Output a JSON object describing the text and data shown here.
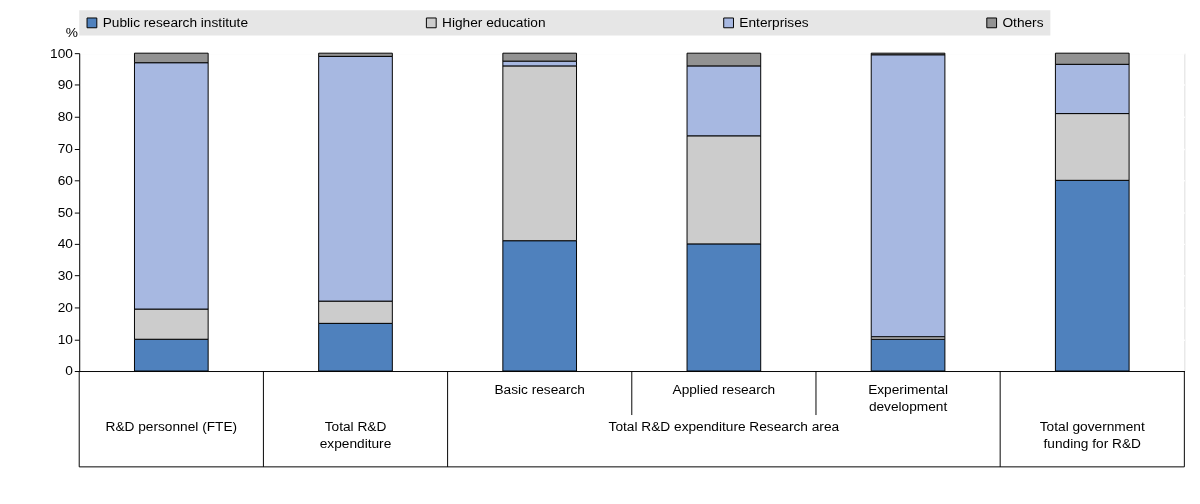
{
  "chart_data": {
    "type": "bar",
    "stacked": true,
    "ylabel": "%",
    "categories": [
      "R&D personnel (FTE)",
      "Total R&D expenditure",
      "Basic research",
      "Applied research",
      "Experimental development",
      "Total government funding for R&D"
    ],
    "series": [
      {
        "name": "Public research institute",
        "color": "#4f81bd",
        "values": [
          10,
          15,
          41,
          40,
          10,
          60
        ]
      },
      {
        "name": "Higher education",
        "color": "#cccccc",
        "values": [
          9.5,
          7,
          55,
          34,
          0.8,
          21
        ]
      },
      {
        "name": "Enterprises",
        "color": "#a7b8e1",
        "values": [
          77.5,
          77,
          1.5,
          22,
          88.7,
          15.5
        ]
      },
      {
        "name": "Others",
        "color": "#929292",
        "values": [
          3,
          1,
          2.5,
          4,
          0.5,
          3.5
        ]
      }
    ],
    "annotations": [
      "Total R&D expenditure Research area"
    ],
    "ylim": [
      0,
      100
    ],
    "yticks": [
      0,
      10,
      20,
      30,
      40,
      50,
      60,
      70,
      80,
      90,
      100
    ],
    "grid": "y",
    "legend": "top"
  }
}
